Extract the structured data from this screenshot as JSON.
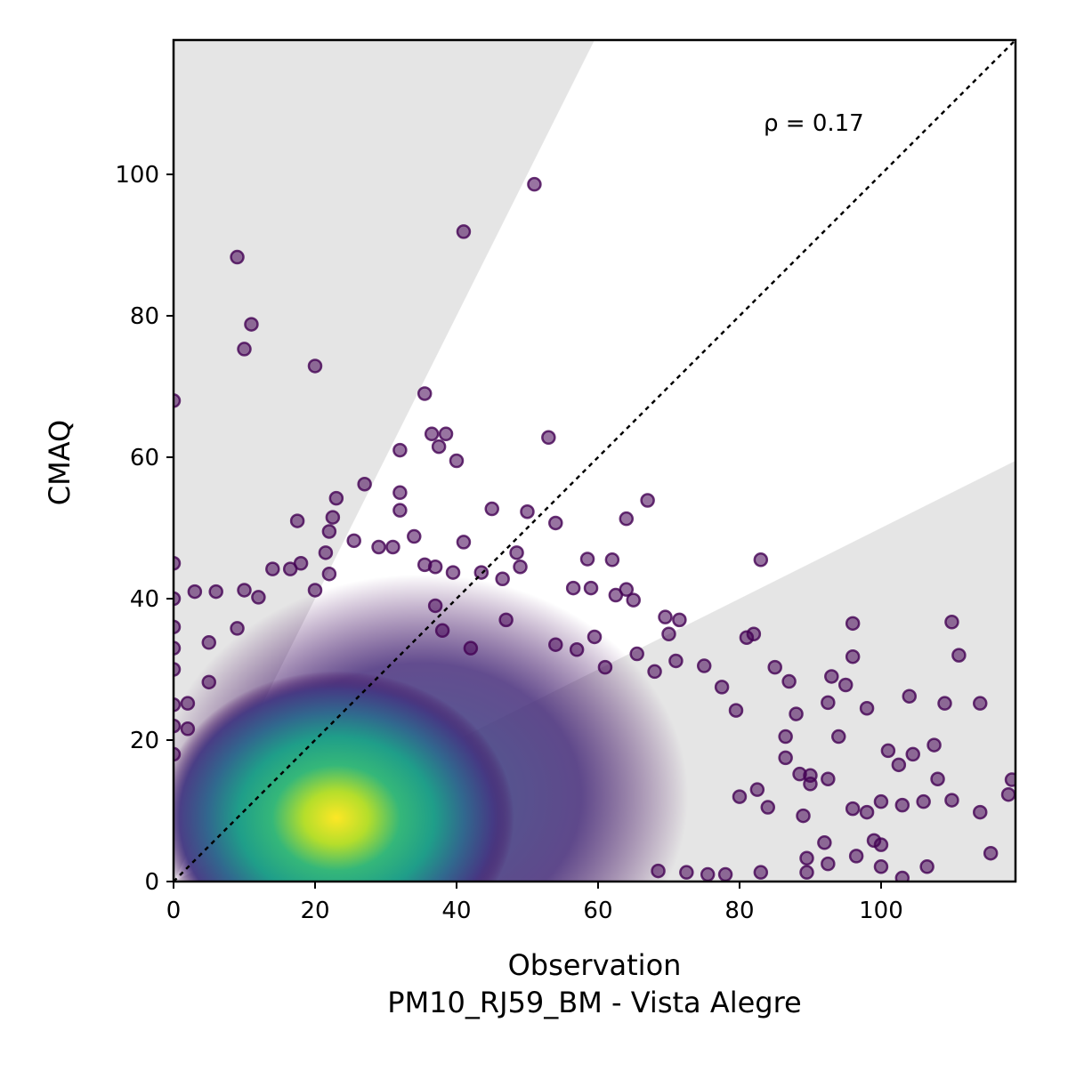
{
  "chart_data": {
    "type": "scatter",
    "xlabel": "Observation",
    "xlabel_sub": "PM10_RJ59_BM - Vista Alegre",
    "ylabel": "CMAQ",
    "xlim": [
      0,
      119
    ],
    "ylim": [
      0,
      119
    ],
    "xticks": [
      0,
      20,
      40,
      60,
      80,
      100
    ],
    "yticks": [
      0,
      20,
      40,
      60,
      80,
      100
    ],
    "annotation": "ρ = 0.17",
    "one_to_one_line": true,
    "shaded_band_slopes": [
      2.0,
      0.5
    ],
    "grid": false,
    "colormap": "viridis (point density)",
    "marker_color": "#440154",
    "density_center": [
      21,
      7
    ],
    "outlier_points": [
      [
        0,
        68
      ],
      [
        9,
        88.3
      ],
      [
        10,
        75.3
      ],
      [
        11,
        78.8
      ],
      [
        20,
        72.9
      ],
      [
        41,
        91.9
      ],
      [
        51,
        98.6
      ],
      [
        35.5,
        69
      ],
      [
        36.5,
        63.3
      ],
      [
        38.5,
        63.3
      ],
      [
        37.5,
        61.5
      ],
      [
        40,
        59.5
      ],
      [
        32,
        61
      ],
      [
        53,
        62.8
      ],
      [
        32,
        55
      ],
      [
        32,
        52.5
      ],
      [
        23,
        54.2
      ],
      [
        27,
        56.2
      ],
      [
        22.5,
        51.5
      ],
      [
        17.5,
        51
      ],
      [
        22,
        49.5
      ],
      [
        45,
        52.7
      ],
      [
        50,
        52.3
      ],
      [
        54,
        50.7
      ],
      [
        64,
        51.3
      ],
      [
        67,
        53.9
      ],
      [
        58.5,
        45.6
      ],
      [
        62,
        45.5
      ],
      [
        41,
        48
      ],
      [
        34,
        48.8
      ],
      [
        83,
        45.5
      ],
      [
        56.5,
        41.5
      ],
      [
        59,
        41.5
      ],
      [
        62.5,
        40.5
      ],
      [
        64,
        41.3
      ],
      [
        65,
        39.8
      ],
      [
        69.5,
        37.4
      ],
      [
        71.5,
        37
      ],
      [
        70,
        35
      ],
      [
        81,
        34.5
      ],
      [
        82,
        35
      ],
      [
        96,
        36.5
      ],
      [
        110,
        36.7
      ],
      [
        111,
        32
      ],
      [
        96,
        31.8
      ],
      [
        93,
        29
      ],
      [
        87,
        28.3
      ],
      [
        85,
        30.3
      ],
      [
        75,
        30.5
      ],
      [
        59.5,
        34.6
      ],
      [
        61,
        30.3
      ],
      [
        65.5,
        32.2
      ],
      [
        68,
        29.7
      ],
      [
        71,
        31.2
      ],
      [
        77.5,
        27.5
      ],
      [
        79.5,
        24.2
      ],
      [
        86.5,
        20.5
      ],
      [
        88,
        23.7
      ],
      [
        92.5,
        25.3
      ],
      [
        95,
        27.8
      ],
      [
        98,
        24.5
      ],
      [
        104,
        26.2
      ],
      [
        109,
        25.2
      ],
      [
        114,
        25.2
      ],
      [
        101,
        18.5
      ],
      [
        104.5,
        18
      ],
      [
        107.5,
        19.3
      ],
      [
        94,
        20.5
      ],
      [
        102.5,
        16.5
      ],
      [
        108,
        14.5
      ],
      [
        118.5,
        14.4
      ],
      [
        110,
        11.5
      ],
      [
        114,
        9.8
      ],
      [
        118,
        12.3
      ],
      [
        106,
        11.3
      ],
      [
        100,
        11.3
      ],
      [
        103,
        10.8
      ],
      [
        98,
        9.8
      ],
      [
        96,
        10.3
      ],
      [
        99,
        5.8
      ],
      [
        100,
        5.2
      ],
      [
        92,
        5.5
      ],
      [
        96.5,
        3.6
      ],
      [
        100,
        2.1
      ],
      [
        106.5,
        2.1
      ],
      [
        115.5,
        4
      ],
      [
        103,
        0.5
      ],
      [
        89.5,
        3.3
      ],
      [
        92.5,
        2.5
      ],
      [
        89.5,
        1.3
      ],
      [
        83,
        1.3
      ],
      [
        78,
        1
      ],
      [
        75.5,
        1
      ],
      [
        72.5,
        1.3
      ],
      [
        68.5,
        1.5
      ],
      [
        86.5,
        17.5
      ],
      [
        88.5,
        15.2
      ],
      [
        90,
        15
      ],
      [
        90,
        13.8
      ],
      [
        92.5,
        14.5
      ],
      [
        89,
        9.3
      ],
      [
        84,
        10.5
      ],
      [
        82.5,
        13
      ],
      [
        80,
        12
      ],
      [
        3,
        41
      ],
      [
        6,
        41
      ],
      [
        5,
        33.8
      ],
      [
        5,
        28.2
      ],
      [
        2,
        25.2
      ],
      [
        2,
        21.6
      ],
      [
        9,
        35.8
      ],
      [
        10,
        41.2
      ],
      [
        12,
        40.2
      ],
      [
        14,
        44.2
      ],
      [
        16.5,
        44.2
      ],
      [
        18,
        45
      ],
      [
        20,
        41.2
      ],
      [
        22,
        43.5
      ],
      [
        21.5,
        46.5
      ],
      [
        25.5,
        48.2
      ],
      [
        29,
        47.3
      ],
      [
        31,
        47.3
      ],
      [
        35.5,
        44.8
      ],
      [
        37,
        44.5
      ],
      [
        39.5,
        43.7
      ],
      [
        43.5,
        43.7
      ],
      [
        46.5,
        42.8
      ],
      [
        49,
        44.5
      ],
      [
        48.5,
        46.5
      ],
      [
        37,
        39
      ],
      [
        38,
        35.5
      ],
      [
        42,
        33
      ],
      [
        47,
        37
      ],
      [
        54,
        33.5
      ],
      [
        57,
        32.8
      ],
      [
        0,
        45
      ],
      [
        0,
        40
      ],
      [
        0,
        36
      ],
      [
        0,
        33
      ],
      [
        0,
        30
      ],
      [
        0,
        25
      ],
      [
        0,
        22
      ],
      [
        0,
        18
      ]
    ]
  }
}
